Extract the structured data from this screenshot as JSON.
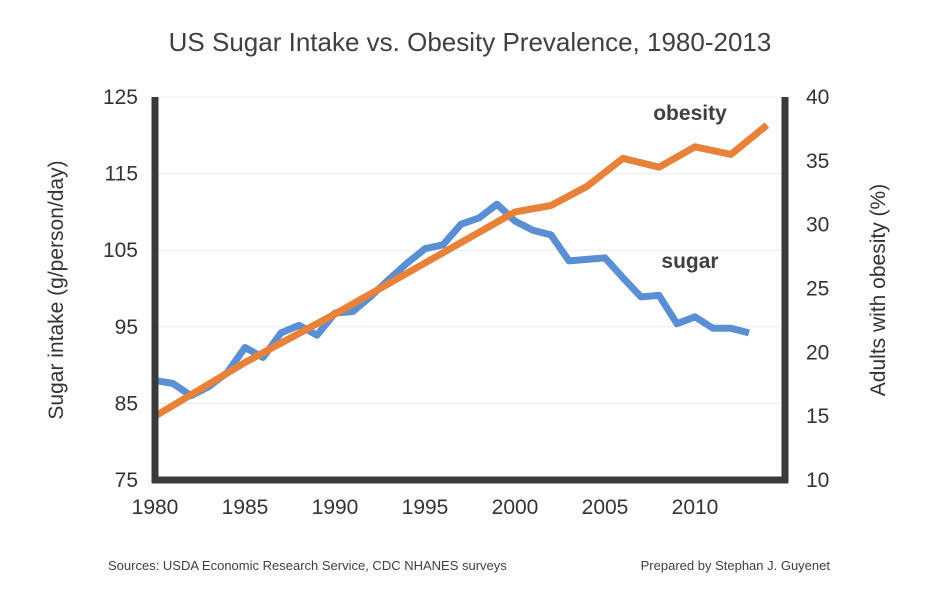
{
  "chart_data": {
    "type": "line",
    "title": "US Sugar Intake vs. Obesity Prevalence, 1980-2013",
    "xlabel": "",
    "ylabel_left": "Sugar intake (g/person/day)",
    "ylabel_right": "Adults with obesity (%)",
    "xlim": [
      1980,
      2015
    ],
    "ylim_left": [
      75,
      125
    ],
    "ylim_right": [
      10,
      40
    ],
    "x_ticks": [
      "1980",
      "1985",
      "1990",
      "1995",
      "2000",
      "2005",
      "2010"
    ],
    "y_left_ticks": [
      "75",
      "85",
      "95",
      "105",
      "115",
      "125"
    ],
    "y_right_ticks": [
      "10",
      "15",
      "20",
      "25",
      "30",
      "35",
      "40"
    ],
    "grid": true,
    "series": [
      {
        "name": "sugar",
        "axis": "left",
        "color": "#5B8FD3",
        "x": [
          1980,
          1981,
          1982,
          1983,
          1984,
          1985,
          1986,
          1987,
          1988,
          1989,
          1990,
          1991,
          1992,
          1993,
          1994,
          1995,
          1996,
          1997,
          1998,
          1999,
          2000,
          2001,
          2002,
          2003,
          2004,
          2005,
          2006,
          2007,
          2008,
          2009,
          2010,
          2011,
          2012,
          2013
        ],
        "values": [
          88,
          87.6,
          86,
          87.2,
          89,
          92.3,
          91,
          94.2,
          95.2,
          93.9,
          96.8,
          97,
          99,
          101.2,
          103.3,
          105.2,
          105.7,
          108.4,
          109.2,
          111,
          108.8,
          107.6,
          107,
          103.6,
          103.8,
          104,
          101.4,
          98.9,
          99.1,
          95.4,
          96.3,
          94.8,
          94.8,
          94.2
        ]
      },
      {
        "name": "obesity",
        "axis": "right",
        "color": "#E8823A",
        "x": [
          1980,
          1985,
          1990,
          1995,
          2000,
          2002,
          2004,
          2006,
          2008,
          2010,
          2012,
          2014
        ],
        "values": [
          15,
          19.2,
          23,
          27,
          31,
          31.5,
          33,
          35.2,
          34.5,
          36.1,
          35.5,
          37.8
        ]
      }
    ],
    "annotations": [
      "obesity",
      "sugar"
    ],
    "sources": "Sources: USDA Economic Research Service, CDC NHANES surveys",
    "credit": "Prepared by Stephan J. Guyenet"
  }
}
